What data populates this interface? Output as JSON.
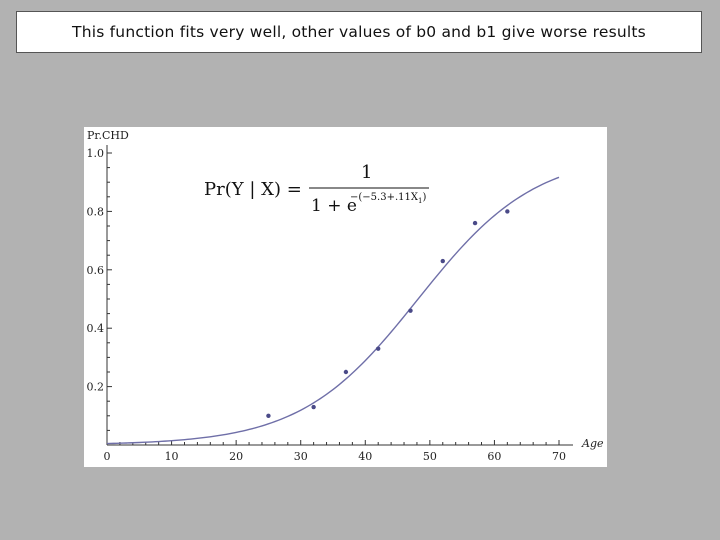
{
  "slide": {
    "title": "This function fits very well, other values of b0 and b1 give worse results"
  },
  "chart_data": {
    "type": "scatter",
    "title": "",
    "xlabel": "Age",
    "ylabel": "Pr.CHD",
    "xlim": [
      0,
      70
    ],
    "ylim": [
      0,
      1.0
    ],
    "x_ticks": [
      0,
      10,
      20,
      30,
      40,
      50,
      60,
      70
    ],
    "y_ticks": [
      0.2,
      0.4,
      0.6,
      0.8,
      1.0
    ],
    "x_tick_labels": [
      "0",
      "10",
      "20",
      "30",
      "40",
      "50",
      "60",
      "70"
    ],
    "y_tick_labels": [
      "0.2",
      "0.4",
      "0.6",
      "0.8",
      "1.0"
    ],
    "grid": false,
    "series": [
      {
        "type": "scatter",
        "x": [
          25,
          32,
          37,
          42,
          47,
          52,
          57,
          62
        ],
        "y": [
          0.1,
          0.13,
          0.25,
          0.33,
          0.46,
          0.63,
          0.76,
          0.8
        ]
      },
      {
        "type": "line",
        "function": "logistic",
        "b0": -5.3,
        "b1": 0.11,
        "x_range": [
          0,
          70
        ]
      }
    ],
    "formula": {
      "lhs": "Pr(Y | X) =",
      "numerator": "1",
      "denominator_base": "1 + e",
      "exponent": "−(−5.3+.11X",
      "exponent_subscript": "1",
      "exponent_close": ")"
    },
    "colors": {
      "curve": "#6f6fa8",
      "points": "#4a4a88",
      "axis": "#333333"
    }
  }
}
